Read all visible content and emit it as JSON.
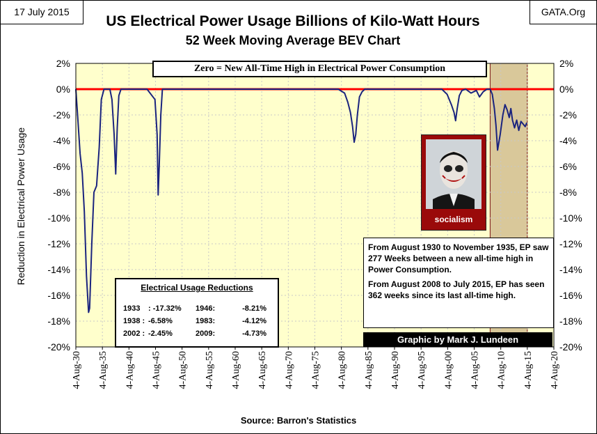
{
  "header": {
    "date": "17 July 2015",
    "site": "GATA.Org",
    "title": "US Electrical Power Usage Billions of Kilo-Watt Hours",
    "subtitle": "52 Week Moving Average BEV Chart"
  },
  "annotations": {
    "zero_note": "Zero = New All-Time High in Electrical Power Consumption",
    "reductions_title": "Electrical Usage Reductions",
    "reductions": [
      {
        "year": "1933",
        "value": ": -17.32%"
      },
      {
        "year": "1938 :",
        "value": "-6.58%"
      },
      {
        "year": "2002 :",
        "value": "-2.45%"
      },
      {
        "year": "1946:",
        "value": "-8.21%"
      },
      {
        "year": "1983:",
        "value": "-4.12%"
      },
      {
        "year": "2009:",
        "value": "-4.73%"
      }
    ],
    "note_p1": "From August 1930  to November 1935,  EP saw 277 Weeks  between a new all-time high in Power Consumption.",
    "note_p2": "From August 2008  to July 2015,  EP has seen  362 weeks since its last all-time high.",
    "credit": "Graphic by Mark J. Lundeen",
    "poster_word": "socialism",
    "source": "Source: Barron's Statistics"
  },
  "colors": {
    "plot_bg": "#ffffcc",
    "shaded_region": "#d9c89a",
    "zero_line": "#ff0000",
    "series": "#1a237e",
    "grid": "#c8c8c8"
  },
  "chart_data": {
    "type": "line",
    "title": "US Electrical Power Usage Billions of Kilo-Watt Hours",
    "subtitle": "52 Week Moving Average BEV Chart",
    "xlabel": "",
    "ylabel": "Reduction in Electrical Power Usage",
    "ylim": [
      -20,
      2
    ],
    "xlim": [
      1930.6,
      2020.6
    ],
    "y_ticks": [
      "2%",
      "0%",
      "-2%",
      "-4%",
      "-6%",
      "-8%",
      "-10%",
      "-12%",
      "-14%",
      "-16%",
      "-18%",
      "-20%"
    ],
    "x_ticks": [
      "4-Aug-30",
      "4-Aug-35",
      "4-Aug-40",
      "4-Aug-45",
      "4-Aug-50",
      "4-Aug-55",
      "4-Aug-60",
      "4-Aug-65",
      "4-Aug-70",
      "4-Aug-75",
      "4-Aug-80",
      "4-Aug-85",
      "4-Aug-90",
      "4-Aug-95",
      "4-Aug-00",
      "4-Aug-05",
      "4-Aug-10",
      "4-Aug-15",
      "4-Aug-20"
    ],
    "shaded_range": [
      2008.6,
      2015.6
    ],
    "grid": true,
    "series": [
      {
        "x": [
          1930.6,
          1931.0,
          1931.4,
          1931.8,
          1932.2,
          1932.6,
          1933.0,
          1933.2,
          1933.6,
          1934.0,
          1934.5,
          1935.0,
          1935.4,
          1935.9,
          1936.5,
          1937.0,
          1937.4,
          1937.8,
          1938.1,
          1938.4,
          1938.7,
          1939.1,
          1939.5,
          1940.0,
          1942.0,
          1944.0,
          1945.5,
          1945.9,
          1946.1,
          1946.3,
          1946.6,
          1946.9,
          1947.3,
          1948.0,
          1955.0,
          1960.0,
          1965.0,
          1970.0,
          1975.0,
          1980.0,
          1981.2,
          1981.8,
          1982.3,
          1982.7,
          1983.0,
          1983.3,
          1983.6,
          1984.0,
          1984.5,
          1985.0,
          1990.0,
          1995.0,
          1999.5,
          2000.5,
          2001.3,
          2001.8,
          2002.1,
          2002.4,
          2002.8,
          2003.3,
          2004.0,
          2005.0,
          2006.0,
          2006.6,
          2007.3,
          2008.0,
          2008.6,
          2009.0,
          2009.4,
          2009.7,
          2010.0,
          2010.5,
          2011.0,
          2011.4,
          2011.8,
          2012.2,
          2012.5,
          2012.8,
          2013.2,
          2013.6,
          2014.0,
          2014.4,
          2014.8,
          2015.2,
          2015.5
        ],
        "y": [
          0,
          -2.5,
          -5.0,
          -6.5,
          -9.5,
          -14.5,
          -17.32,
          -17.0,
          -12.0,
          -8.0,
          -7.5,
          -4.5,
          -0.8,
          0,
          0,
          0,
          -0.8,
          -3.5,
          -6.58,
          -3.0,
          -0.5,
          0,
          0,
          0,
          0,
          0,
          -0.8,
          -3.5,
          -8.21,
          -6.0,
          -2.0,
          0,
          0,
          0,
          0,
          0,
          0,
          0,
          0,
          0,
          -0.3,
          -1.0,
          -1.8,
          -2.9,
          -4.12,
          -3.5,
          -2.0,
          -0.6,
          -0.2,
          0,
          0,
          0,
          0,
          -0.4,
          -1.2,
          -1.8,
          -2.45,
          -1.5,
          -0.5,
          -0.1,
          0,
          -0.3,
          -0.1,
          -0.6,
          -0.2,
          0,
          0,
          -0.4,
          -1.5,
          -2.8,
          -4.73,
          -3.5,
          -2.0,
          -1.2,
          -1.6,
          -2.2,
          -1.5,
          -2.4,
          -3.0,
          -2.4,
          -3.2,
          -2.5,
          -2.7,
          -2.9,
          -2.6
        ]
      }
    ]
  }
}
